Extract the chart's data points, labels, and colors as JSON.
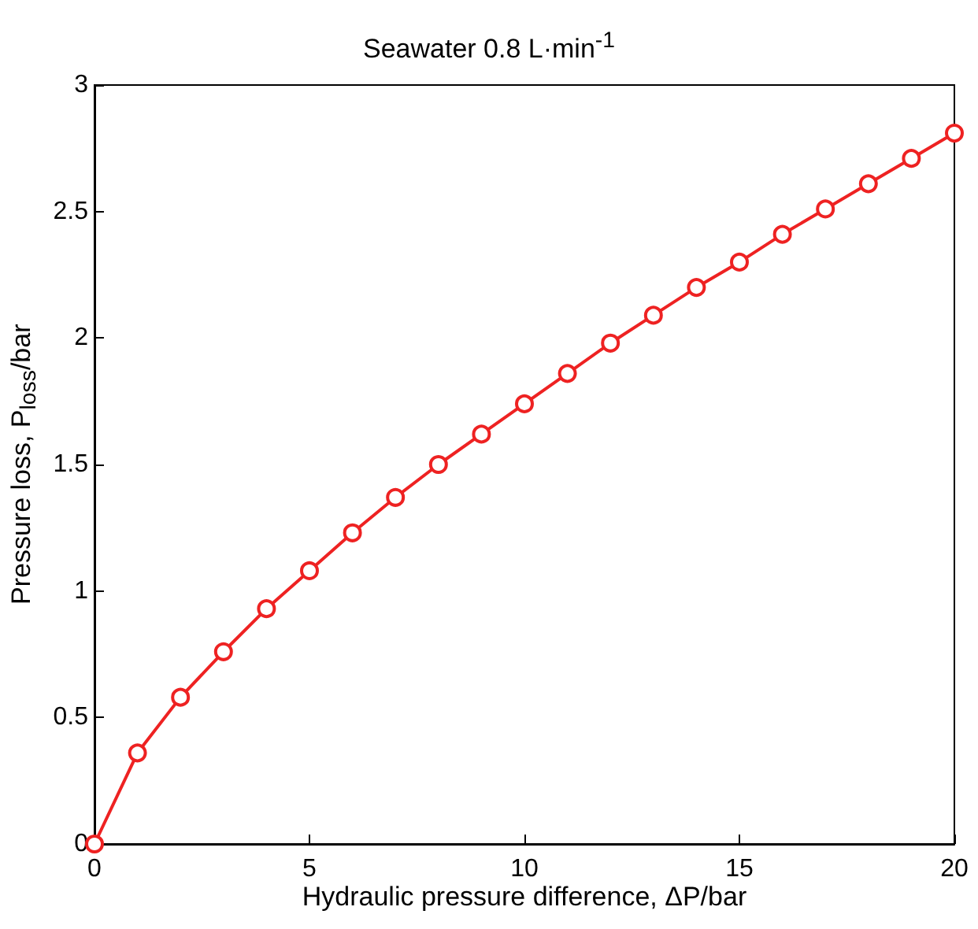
{
  "chart_data": {
    "type": "line",
    "title": "Seawater 0.8 L·min$^{-1}$",
    "xlabel": "Hydraulic pressure difference, ΔP/bar",
    "ylabel": "Pressure loss, P$_{loss}$/bar",
    "x": [
      0,
      1,
      2,
      3,
      4,
      5,
      6,
      7,
      8,
      9,
      10,
      11,
      12,
      13,
      14,
      15,
      16,
      17,
      18,
      19,
      20
    ],
    "series": [
      {
        "color": "#ee2222",
        "values": [
          0,
          0.36,
          0.58,
          0.76,
          0.93,
          1.08,
          1.23,
          1.37,
          1.5,
          1.62,
          1.74,
          1.86,
          1.98,
          2.09,
          2.2,
          2.3,
          2.41,
          2.51,
          2.61,
          2.71,
          2.81
        ]
      }
    ],
    "xlim": [
      0,
      20
    ],
    "xticks": [
      0,
      5,
      10,
      15,
      20
    ],
    "ylim": [
      0,
      3
    ],
    "yticks": [
      0,
      0.5,
      1,
      1.5,
      2,
      2.5,
      3
    ],
    "grid": false,
    "marker": "circle",
    "line_style": "solid"
  }
}
